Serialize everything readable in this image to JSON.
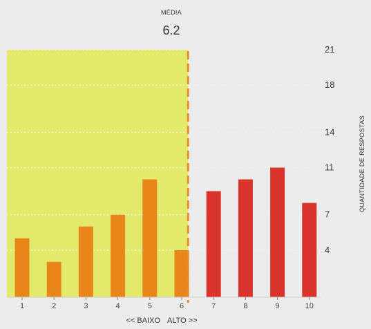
{
  "chart_data": {
    "type": "bar",
    "categories": [
      "1",
      "2",
      "3",
      "4",
      "5",
      "6",
      "7",
      "8",
      "9",
      "10"
    ],
    "values": [
      5,
      3,
      6,
      7,
      10,
      4,
      9,
      10,
      11,
      8
    ],
    "colors": [
      "#e8861a",
      "#e8861a",
      "#e8861a",
      "#e8861a",
      "#e8861a",
      "#e8861a",
      "#d9342b",
      "#d9342b",
      "#d9342b",
      "#d9342b"
    ],
    "low_color": "#e8861a",
    "high_color": "#d9342b",
    "highlight_color": "#e4eb6c",
    "mean_line_color": "#ee8a2e",
    "mean": 6.2,
    "mean_label": "MÉDIA",
    "mean_value_text": "6.2",
    "ylabel": "QUANTIDADE DE RESPOSTAS",
    "yticks": [
      4,
      7,
      11,
      14,
      18,
      21
    ],
    "ylim": [
      0,
      21
    ],
    "grid": "dotted",
    "xlabel_low": "<< BAIXO",
    "xlabel_high": "ALTO >>"
  }
}
